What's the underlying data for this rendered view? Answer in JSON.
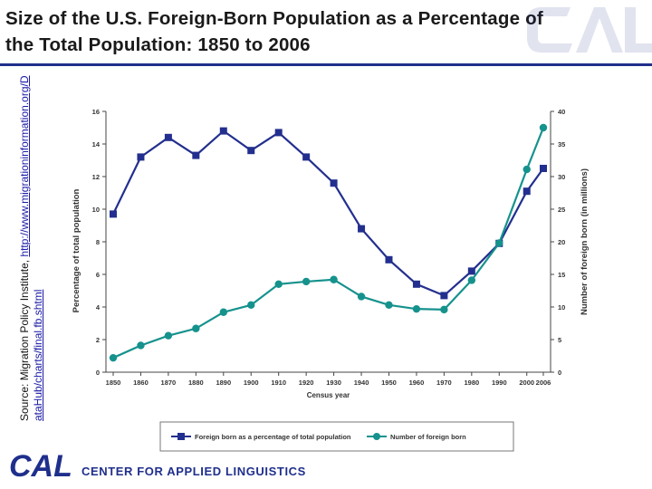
{
  "page": {
    "title": "Size of the U.S. Foreign-Born Population as a Percentage of the Total Population: 1850 to 2006",
    "source_label": "Source: Migration Policy Institute,",
    "source_link": "http://www.migrationinformation.org/DataHub/charts/final.fb.shtml"
  },
  "branding": {
    "logo_text": "CAL",
    "org_name": "CENTER FOR APPLIED LINGUISTICS",
    "brand_color": "#1f2f8c"
  },
  "chart_data": {
    "type": "line",
    "x": [
      1850,
      1860,
      1870,
      1880,
      1890,
      1900,
      1910,
      1920,
      1930,
      1940,
      1950,
      1960,
      1970,
      1980,
      1990,
      2000,
      2006
    ],
    "xlabel": "Census year",
    "ylabel_left": "Percentage of total population",
    "ylabel_right": "Number of foreign born (in millions)",
    "ylim_left": [
      0,
      16
    ],
    "ylim_right": [
      0,
      40
    ],
    "yticks_left": [
      0,
      2,
      4,
      6,
      8,
      10,
      12,
      14,
      16
    ],
    "yticks_right": [
      0,
      5,
      10,
      15,
      20,
      25,
      30,
      35,
      40
    ],
    "series": [
      {
        "name": "Foreign born as a percentage of total population",
        "axis": "left",
        "color": "#232f8e",
        "marker": "square",
        "values": [
          9.7,
          13.2,
          14.4,
          13.3,
          14.8,
          13.6,
          14.7,
          13.2,
          11.6,
          8.8,
          6.9,
          5.4,
          4.7,
          6.2,
          7.9,
          11.1,
          12.5
        ]
      },
      {
        "name": "Number of foreign born",
        "axis": "right",
        "color": "#16928d",
        "marker": "circle",
        "values": [
          2.2,
          4.1,
          5.6,
          6.7,
          9.2,
          10.3,
          13.5,
          13.9,
          14.2,
          11.6,
          10.3,
          9.7,
          9.6,
          14.1,
          19.8,
          31.1,
          37.5
        ]
      }
    ],
    "grid": false,
    "legend_position": "bottom"
  }
}
